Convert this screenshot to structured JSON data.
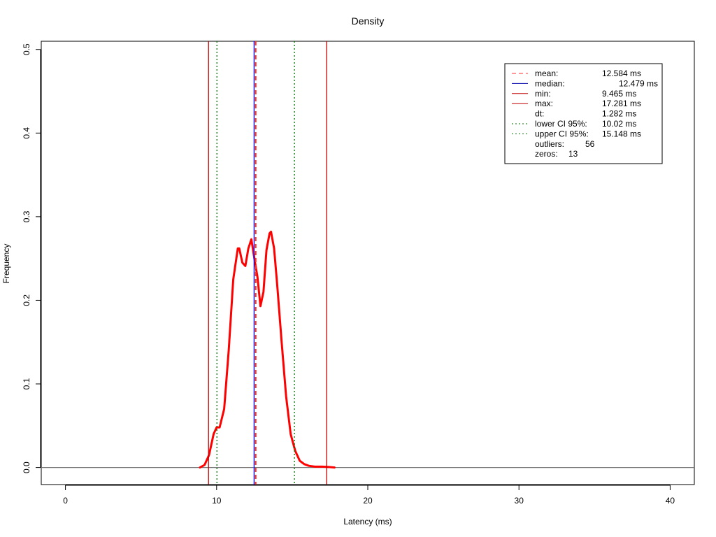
{
  "chart_data": {
    "type": "line",
    "title": "Density",
    "xlabel": "Latency (ms)",
    "ylabel": "Frequency",
    "xlim": [
      -1.6,
      41.6
    ],
    "ylim": [
      -0.0204,
      0.5098
    ],
    "x_ticks": [
      0,
      10,
      20,
      30,
      40
    ],
    "y_ticks": [
      0.0,
      0.1,
      0.2,
      0.3,
      0.4,
      0.5
    ],
    "x_tick_labels": [
      "0",
      "10",
      "20",
      "30",
      "40"
    ],
    "y_tick_labels": [
      "0.0",
      "0.1",
      "0.2",
      "0.3",
      "0.4",
      "0.5"
    ],
    "grid": false,
    "legend_position": "top-right",
    "density": {
      "color": "#ff0000",
      "x": [
        8.9,
        9.2,
        9.5,
        9.8,
        10.0,
        10.2,
        10.5,
        10.8,
        11.1,
        11.4,
        11.5,
        11.7,
        11.9,
        12.1,
        12.3,
        12.5,
        12.7,
        12.9,
        13.1,
        13.3,
        13.5,
        13.6,
        13.8,
        14.0,
        14.3,
        14.6,
        14.9,
        15.2,
        15.5,
        15.8,
        16.1,
        16.5,
        17.0,
        17.5,
        17.8
      ],
      "y": [
        0.0,
        0.003,
        0.015,
        0.04,
        0.048,
        0.048,
        0.07,
        0.14,
        0.225,
        0.262,
        0.262,
        0.245,
        0.241,
        0.262,
        0.273,
        0.25,
        0.228,
        0.193,
        0.21,
        0.26,
        0.28,
        0.282,
        0.262,
        0.22,
        0.15,
        0.085,
        0.04,
        0.02,
        0.008,
        0.004,
        0.002,
        0.001,
        0.001,
        0.0005,
        0.0
      ]
    },
    "vlines": [
      {
        "name": "min",
        "x": 9.465,
        "color": "#c00000",
        "dash": "solid"
      },
      {
        "name": "lower",
        "x": 10.02,
        "color": "#007000",
        "dash": "dotted"
      },
      {
        "name": "median",
        "x": 12.479,
        "color": "#0000ff",
        "dash": "solid"
      },
      {
        "name": "mean",
        "x": 12.584,
        "color": "#ff3030",
        "dash": "dashed"
      },
      {
        "name": "upper",
        "x": 15.148,
        "color": "#007000",
        "dash": "dotted"
      },
      {
        "name": "max",
        "x": 17.281,
        "color": "#c00000",
        "dash": "solid"
      }
    ],
    "hline": {
      "y": 0,
      "color": "#777777"
    },
    "legend": {
      "lines": [
        {
          "label": "mean:",
          "value": "12.584 ms",
          "color": "#ff3030",
          "dash": "dashed"
        },
        {
          "label": "median:",
          "value": "12.479 ms",
          "color": "#0000aa",
          "dash": "solid"
        },
        {
          "label": "min:",
          "value": "9.465 ms",
          "color": "#c00000",
          "dash": "solid"
        },
        {
          "label": "max:",
          "value": "17.281 ms",
          "color": "#c00000",
          "dash": "solid"
        },
        {
          "label": "dt:",
          "value": "1.282 ms",
          "color": null,
          "dash": null
        },
        {
          "label": "lower CI 95%:",
          "value": "10.02 ms",
          "color": "#007000",
          "dash": "dotted"
        },
        {
          "label": "upper CI 95%:",
          "value": "15.148 ms",
          "color": "#007000",
          "dash": "dotted"
        },
        {
          "label": "outliers:",
          "value": "56",
          "color": null,
          "dash": null
        },
        {
          "label": "zeros:",
          "value": "13",
          "color": null,
          "dash": null
        }
      ]
    }
  }
}
